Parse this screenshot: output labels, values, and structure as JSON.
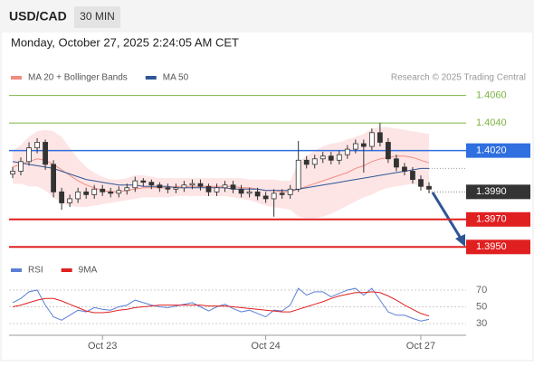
{
  "header": {
    "symbol": "USD/CAD",
    "timeframe": "30 MIN",
    "datetime": "Monday, October 27, 2025 2:24:05 AM CET",
    "credit": "Research © 2025 Trading Central"
  },
  "chart_data": [
    {
      "type": "candlestick",
      "categories": [
        null,
        null,
        null,
        null,
        null,
        null,
        null,
        null,
        null,
        null,
        null,
        "Oct 23",
        null,
        null,
        null,
        null,
        null,
        null,
        null,
        null,
        null,
        null,
        null,
        null,
        null,
        null,
        null,
        null,
        null,
        null,
        null,
        "Oct 24",
        null,
        null,
        null,
        null,
        null,
        null,
        null,
        null,
        null,
        null,
        null,
        null,
        null,
        null,
        null,
        null,
        null,
        null,
        "Oct 27",
        null
      ],
      "open": [
        1.4003,
        1.4005,
        1.4012,
        1.4022,
        1.4026,
        1.401,
        1.399,
        1.3982,
        1.3985,
        1.399,
        1.3988,
        1.3992,
        1.399,
        1.3989,
        1.3991,
        1.3993,
        1.3998,
        1.3997,
        1.3995,
        1.3993,
        1.3992,
        1.3993,
        1.3995,
        1.3996,
        1.3994,
        1.399,
        1.3993,
        1.3995,
        1.3992,
        1.3989,
        1.399,
        1.3987,
        1.3985,
        1.3989,
        1.3988,
        1.3992,
        1.4013,
        1.401,
        1.4014,
        1.4016,
        1.4013,
        1.4017,
        1.4021,
        1.4025,
        1.4023,
        1.4033,
        1.4026,
        1.4014,
        1.4008,
        1.4005,
        1.3999,
        1.3994
      ],
      "high": [
        1.4008,
        1.4015,
        1.4026,
        1.4029,
        1.4028,
        1.4013,
        1.3993,
        1.3988,
        1.3993,
        1.3993,
        1.3995,
        1.3995,
        1.3993,
        1.3994,
        1.3996,
        1.4001,
        1.4,
        1.3999,
        1.3997,
        1.3996,
        1.3996,
        1.3998,
        1.3999,
        1.3999,
        1.3996,
        1.3996,
        1.3998,
        1.3998,
        1.3995,
        1.3993,
        1.3993,
        1.399,
        1.3992,
        1.3992,
        1.3995,
        1.4027,
        1.4016,
        1.4017,
        1.4019,
        1.4019,
        1.402,
        1.4024,
        1.4028,
        1.4028,
        1.4036,
        1.404,
        1.4029,
        1.4017,
        1.4011,
        1.4008,
        1.4002,
        1.3997
      ],
      "low": [
        1.4,
        1.4002,
        1.4009,
        1.4018,
        1.4006,
        1.3986,
        1.3977,
        1.3979,
        1.3982,
        1.3985,
        1.3985,
        1.3987,
        1.3986,
        1.3986,
        1.3988,
        1.399,
        1.3994,
        1.3992,
        1.399,
        1.3989,
        1.3989,
        1.399,
        1.3992,
        1.3991,
        1.3987,
        1.3987,
        1.399,
        1.3989,
        1.3986,
        1.3986,
        1.3984,
        1.3982,
        1.3972,
        1.3985,
        1.3985,
        1.399,
        1.4007,
        1.4007,
        1.4011,
        1.401,
        1.401,
        1.4014,
        1.4018,
        1.4004,
        1.402,
        1.4023,
        1.4011,
        1.4005,
        1.4002,
        1.3996,
        1.3991,
        1.3989
      ],
      "close": [
        1.4005,
        1.4012,
        1.4022,
        1.4026,
        1.401,
        1.399,
        1.3982,
        1.3985,
        1.399,
        1.3988,
        1.3992,
        1.399,
        1.3989,
        1.3991,
        1.3993,
        1.3998,
        1.3997,
        1.3995,
        1.3993,
        1.3992,
        1.3993,
        1.3995,
        1.3996,
        1.3994,
        1.399,
        1.3993,
        1.3995,
        1.3992,
        1.3989,
        1.399,
        1.3987,
        1.3985,
        1.3989,
        1.3988,
        1.3992,
        1.4013,
        1.401,
        1.4014,
        1.4016,
        1.4013,
        1.4017,
        1.4021,
        1.4025,
        1.4023,
        1.4033,
        1.4026,
        1.4014,
        1.4008,
        1.4005,
        1.3999,
        1.3994,
        1.3992
      ],
      "up_color": "#ffffff",
      "down_color": "#333333",
      "series": [
        {
          "name": "MA 20 + Bollinger Bands",
          "color": "#f28b82",
          "values": [
            1.4008,
            1.401,
            1.4012,
            1.4014,
            1.4013,
            1.401,
            1.4006,
            1.4002,
            1.3998,
            1.3995,
            1.3993,
            1.3991,
            1.399,
            1.399,
            1.3991,
            1.3992,
            1.3993,
            1.3993,
            1.3993,
            1.3993,
            1.3994,
            1.3994,
            1.3994,
            1.3994,
            1.3994,
            1.3994,
            1.3994,
            1.3994,
            1.3993,
            1.3993,
            1.3992,
            1.3991,
            1.3991,
            1.399,
            1.399,
            1.3992,
            1.3994,
            1.3996,
            1.3998,
            1.4,
            1.4002,
            1.4004,
            1.4007,
            1.4009,
            1.4012,
            1.4014,
            1.4015,
            1.4016,
            1.4016,
            1.4015,
            1.4013,
            1.4011
          ],
          "upper": [
            1.402,
            1.4024,
            1.403,
            1.4034,
            1.4035,
            1.4034,
            1.403,
            1.4022,
            1.4014,
            1.4008,
            1.4004,
            1.4001,
            1.3999,
            1.3999,
            1.4,
            1.4002,
            1.4002,
            1.4001,
            1.4,
            1.4,
            1.4,
            1.4,
            1.4,
            1.4,
            1.4,
            1.4,
            1.4,
            1.4,
            1.4,
            1.3999,
            1.3999,
            1.3999,
            1.3999,
            1.3998,
            1.3998,
            1.4012,
            1.4016,
            1.402,
            1.4023,
            1.4025,
            1.4026,
            1.4028,
            1.403,
            1.4032,
            1.4036,
            1.4037,
            1.4037,
            1.4036,
            1.4035,
            1.4034,
            1.4033,
            1.4032
          ],
          "lower": [
            1.3996,
            1.3996,
            1.3994,
            1.3994,
            1.3991,
            1.3986,
            1.3982,
            1.398,
            1.3979,
            1.3979,
            1.398,
            1.3981,
            1.3982,
            1.3983,
            1.3984,
            1.3985,
            1.3986,
            1.3986,
            1.3986,
            1.3986,
            1.3987,
            1.3987,
            1.3987,
            1.3987,
            1.3987,
            1.3987,
            1.3987,
            1.3986,
            1.3985,
            1.3984,
            1.3982,
            1.398,
            1.3979,
            1.3978,
            1.3977,
            1.3972,
            1.3971,
            1.3971,
            1.3972,
            1.3974,
            1.3977,
            1.398,
            1.3983,
            1.3986,
            1.3988,
            1.3991,
            1.3993,
            1.3994,
            1.3995,
            1.3996,
            1.3994,
            1.399
          ]
        },
        {
          "name": "MA 50",
          "color": "#2f5597",
          "values": [
            1.4012,
            1.4011,
            1.401,
            1.4009,
            1.4008,
            1.4007,
            1.4005,
            1.4003,
            1.4001,
            1.3999,
            1.3998,
            1.3997,
            1.3996,
            1.3995,
            1.3995,
            1.3995,
            1.3994,
            1.3994,
            1.3994,
            1.3994,
            1.3993,
            1.3993,
            1.3993,
            1.3993,
            1.3993,
            1.3993,
            1.3993,
            1.3992,
            1.3992,
            1.3992,
            1.3992,
            1.3991,
            1.3991,
            1.3991,
            1.3991,
            1.3992,
            1.3993,
            1.3994,
            1.3995,
            1.3996,
            1.3997,
            1.3998,
            1.3999,
            1.4,
            1.4001,
            1.4002,
            1.4003,
            1.4004,
            1.4005,
            1.4006,
            1.4007,
            1.4007
          ]
        }
      ],
      "ylim": [
        1.3941,
        1.4067
      ],
      "levels": [
        {
          "value": 1.406,
          "label": "1.4060",
          "color": "#7cb342",
          "style": "text"
        },
        {
          "value": 1.404,
          "label": "1.4040",
          "color": "#7cb342",
          "style": "text"
        },
        {
          "value": 1.402,
          "label": "1.4020",
          "color": "#2f6fdf",
          "style": "box"
        },
        {
          "value": 1.399,
          "label": "1.3990",
          "color": "#333333",
          "style": "current"
        },
        {
          "value": 1.397,
          "label": "1.3970",
          "color": "#e02020",
          "style": "box"
        },
        {
          "value": 1.395,
          "label": "1.3950",
          "color": "#e02020",
          "style": "box"
        }
      ]
    },
    {
      "type": "line",
      "series": [
        {
          "name": "RSI",
          "color": "#5b7fd6",
          "values": [
            55,
            60,
            68,
            70,
            52,
            38,
            34,
            40,
            46,
            44,
            49,
            47,
            46,
            50,
            52,
            58,
            55,
            52,
            50,
            49,
            51,
            53,
            55,
            50,
            45,
            50,
            53,
            48,
            44,
            46,
            42,
            38,
            46,
            45,
            52,
            72,
            64,
            68,
            68,
            62,
            66,
            70,
            72,
            64,
            72,
            58,
            44,
            40,
            40,
            36,
            33,
            35
          ]
        },
        {
          "name": "9MA",
          "color": "#e02020",
          "values": [
            50,
            52,
            55,
            58,
            60,
            60,
            57,
            53,
            49,
            45,
            43,
            43,
            44,
            46,
            47,
            49,
            50,
            51,
            52,
            52,
            52,
            52,
            52,
            52,
            51,
            51,
            51,
            50,
            49,
            48,
            47,
            46,
            45,
            44,
            44,
            47,
            50,
            53,
            56,
            60,
            63,
            65,
            67,
            67,
            68,
            67,
            63,
            58,
            52,
            47,
            42,
            39
          ]
        }
      ],
      "ylim": [
        20,
        80
      ],
      "yticks": [
        70,
        50,
        30
      ],
      "grid": true
    }
  ]
}
